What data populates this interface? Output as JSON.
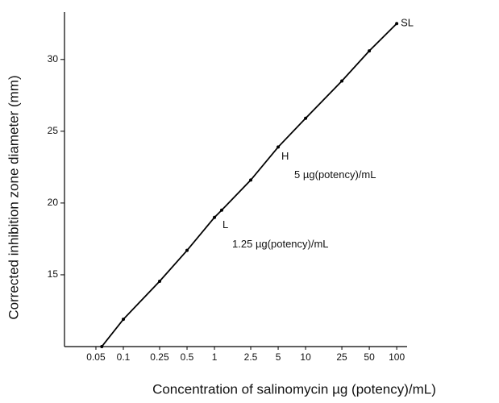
{
  "chart_data": {
    "type": "line",
    "x_label": "Concentration of salinomycin µg (potency)/mL)",
    "y_label": "Corrected inhibition zone diameter (mm)",
    "x_scale": "log",
    "xlim": [
      0.0226,
      130
    ],
    "ylim": [
      10,
      33.3
    ],
    "xticks": [
      0.05,
      0.1,
      0.25,
      0.5,
      1,
      2.5,
      5,
      10,
      25,
      50,
      100
    ],
    "yticks": [
      15,
      20,
      25,
      30
    ],
    "color": "#000000",
    "x": [
      0.058,
      0.1,
      0.25,
      0.5,
      1,
      1.2,
      2.5,
      5,
      10,
      25,
      50,
      100
    ],
    "values": [
      10,
      11.9,
      14.55,
      16.7,
      19.0,
      19.5,
      21.6,
      23.9,
      25.9,
      28.5,
      30.6,
      32.5
    ],
    "annotations": [
      {
        "text": "SL",
        "x": 100,
        "y": 32.5
      },
      {
        "text": "H",
        "x": 5,
        "y": 23.9
      },
      {
        "text": "5 µg(potency)/mL",
        "x": 5,
        "y": 23.9
      },
      {
        "text": "L",
        "x": 1,
        "y": 19.0
      },
      {
        "text": "1.25 µg(potency)/mL",
        "x": 1,
        "y": 19.0
      }
    ]
  }
}
